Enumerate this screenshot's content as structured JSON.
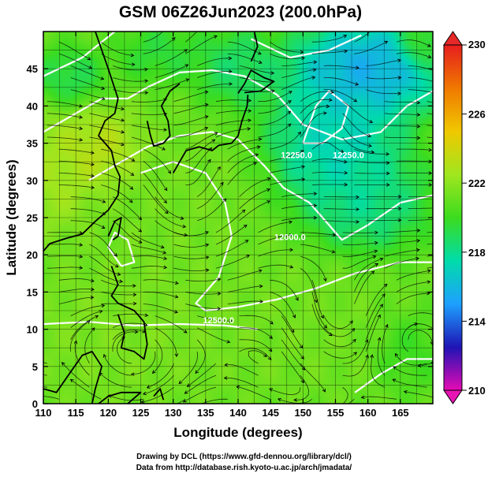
{
  "chart_data": {
    "type": "heatmap",
    "title": "GSM 06Z26Jun2023 (200.0hPa)",
    "xlabel": "Longitude (degrees)",
    "ylabel": "Latitude  (degrees)",
    "xlim": [
      110,
      170
    ],
    "ylim": [
      0,
      50
    ],
    "x_ticks": [
      110,
      115,
      120,
      125,
      130,
      135,
      140,
      145,
      150,
      155,
      160,
      165
    ],
    "y_ticks": [
      0,
      5,
      10,
      15,
      20,
      25,
      30,
      35,
      40,
      45
    ],
    "grid": true,
    "colorbar": {
      "ticks": [
        210,
        214,
        218,
        222,
        226,
        230
      ],
      "range": [
        210,
        230
      ],
      "colors": [
        "#e60ab4",
        "#1e14b4",
        "#1ea0ff",
        "#00dcaa",
        "#3cdc1e",
        "#a0e61e",
        "#f0c800",
        "#f07800",
        "#e61e1e"
      ]
    },
    "contour_labels": [
      {
        "text": "12500.0",
        "lon": 137,
        "lat": 10.8
      },
      {
        "text": "12250.0",
        "lon": 149,
        "lat": 33
      },
      {
        "text": "12250.0",
        "lon": 157,
        "lat": 33
      },
      {
        "text": "12000.0",
        "lon": 148,
        "lat": 22
      }
    ],
    "field_centers": [
      {
        "lon": 119,
        "lat": 34,
        "value": 224,
        "sx": 5,
        "sy": 4
      },
      {
        "lon": 112,
        "lat": 31,
        "value": 223,
        "sx": 5,
        "sy": 6
      },
      {
        "lon": 114,
        "lat": 44,
        "value": 218.5,
        "sx": 4,
        "sy": 3
      },
      {
        "lon": 131,
        "lat": 26,
        "value": 221.5,
        "sx": 10,
        "sy": 9
      },
      {
        "lon": 160,
        "lat": 45,
        "value": 214,
        "sx": 9,
        "sy": 5
      },
      {
        "lon": 155,
        "lat": 35,
        "value": 216,
        "sx": 8,
        "sy": 7
      },
      {
        "lon": 160,
        "lat": 27,
        "value": 217.5,
        "sx": 7,
        "sy": 5
      },
      {
        "lon": 148,
        "lat": 10,
        "value": 221.5,
        "sx": 14,
        "sy": 7
      },
      {
        "lon": 122,
        "lat": 10,
        "value": 221.8,
        "sx": 12,
        "sy": 8
      },
      {
        "lon": 168,
        "lat": 48,
        "value": 221,
        "sx": 2.5,
        "sy": 2.5
      },
      {
        "lon": 140,
        "lat": 45,
        "value": 218,
        "sx": 5,
        "sy": 4
      },
      {
        "lon": 128,
        "lat": 47,
        "value": 219,
        "sx": 5,
        "sy": 3
      },
      {
        "lon": 166,
        "lat": 7,
        "value": 219.5,
        "sx": 4,
        "sy": 4
      }
    ],
    "field_base": 221
  },
  "credits": {
    "line1": "Drawing by DCL (https://www.gfd-dennou.org/library/dcl/)",
    "line2": "Data from http://database.rish.kyoto-u.ac.jp/arch/jmadata/"
  }
}
